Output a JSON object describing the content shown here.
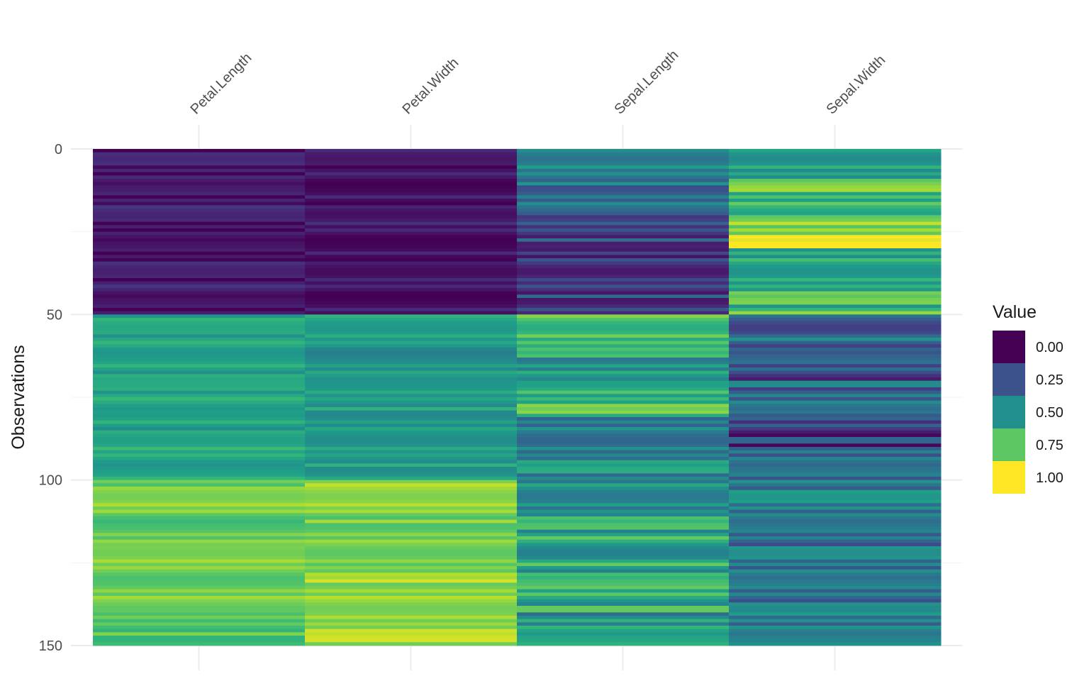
{
  "chart_data": {
    "type": "heatmap",
    "title": "",
    "xlabel": "",
    "ylabel": "Observations",
    "x_position": "top",
    "y_reversed": true,
    "ylim": [
      0,
      150
    ],
    "y_ticks": [
      0,
      50,
      100,
      150
    ],
    "y_tick_labels": [
      "0",
      "50",
      "100",
      "150"
    ],
    "columns": [
      "Petal.Length",
      "Petal.Width",
      "Sepal.Length",
      "Sepal.Width"
    ],
    "grid": true,
    "legend": {
      "title": "Value",
      "placement": "right",
      "breaks": [
        0.0,
        0.25,
        0.5,
        0.75,
        1.0
      ],
      "labels": [
        "0.00",
        "0.25",
        "0.50",
        "0.75",
        "1.00"
      ],
      "colors": [
        "#440154",
        "#3B528B",
        "#21908C",
        "#5DC863",
        "#FDE725"
      ]
    },
    "palette": [
      "#440154",
      "#482878",
      "#3E4A89",
      "#31688E",
      "#26828E",
      "#1F9E89",
      "#35B779",
      "#6DCD59",
      "#B4DE2C",
      "#FDE725"
    ],
    "rows_per_segment": 10,
    "segment_values": [
      [
        0.07,
        0.05,
        0.44,
        0.6
      ],
      [
        0.07,
        0.04,
        0.36,
        0.7
      ],
      [
        0.06,
        0.05,
        0.22,
        0.88
      ],
      [
        0.06,
        0.04,
        0.15,
        0.65
      ],
      [
        0.07,
        0.06,
        0.22,
        0.68
      ],
      [
        0.58,
        0.55,
        0.72,
        0.35
      ],
      [
        0.57,
        0.52,
        0.55,
        0.22
      ],
      [
        0.6,
        0.55,
        0.68,
        0.32
      ],
      [
        0.57,
        0.53,
        0.45,
        0.18
      ],
      [
        0.59,
        0.56,
        0.48,
        0.32
      ],
      [
        0.8,
        0.85,
        0.55,
        0.4
      ],
      [
        0.75,
        0.8,
        0.6,
        0.35
      ],
      [
        0.8,
        0.8,
        0.6,
        0.38
      ],
      [
        0.78,
        0.85,
        0.6,
        0.38
      ],
      [
        0.72,
        0.85,
        0.5,
        0.42
      ]
    ]
  }
}
